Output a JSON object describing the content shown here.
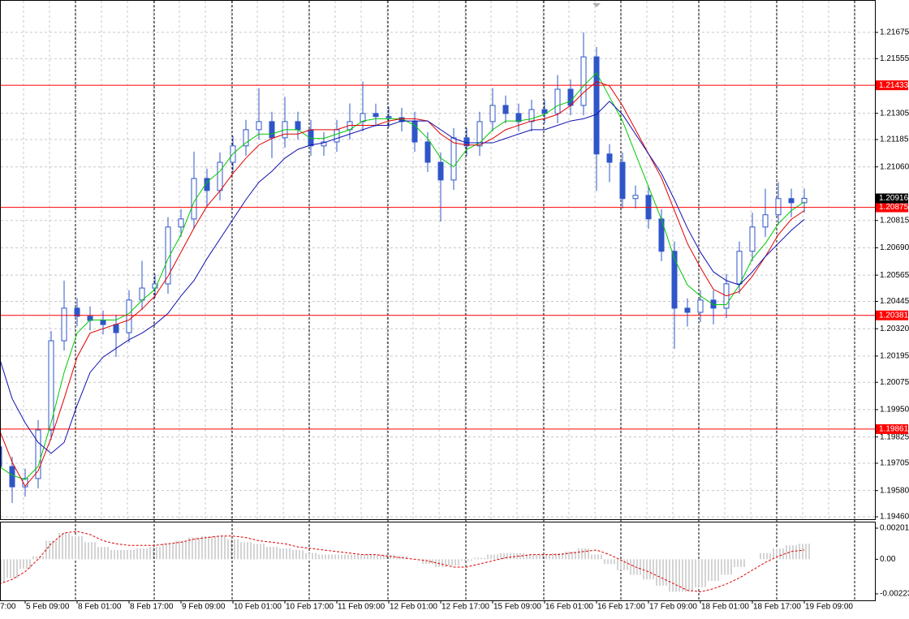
{
  "chart_data": [
    {
      "type": "candlestick",
      "categories": [
        "7:00",
        null,
        "5 Feb 09:00",
        null,
        null,
        null,
        "8 Feb 01:00",
        null,
        null,
        null,
        "8 Feb 17:00",
        null,
        null,
        null,
        "9 Feb 09:00",
        null,
        null,
        null,
        "10 Feb 01:00",
        null,
        null,
        null,
        "10 Feb 17:00",
        null,
        null,
        null,
        "11 Feb 09:00",
        null,
        null,
        null,
        "12 Feb 01:00",
        null,
        null,
        null,
        "12 Feb 17:00",
        null,
        null,
        null,
        "15 Feb 09:00",
        null,
        null,
        null,
        "16 Feb 01:00",
        null,
        null,
        null,
        "16 Feb 17:00",
        null,
        null,
        null,
        "17 Feb 09:00",
        null,
        null,
        null,
        "18 Feb 01:00",
        null,
        null,
        null,
        "18 Feb 17:00",
        null,
        null,
        null,
        "19 Feb 09:00"
      ],
      "open": [
        1.1978,
        1.1969,
        1.19597,
        1.19635,
        1.19857,
        1.20265,
        1.20414,
        1.20377,
        1.20358,
        1.20339,
        1.20302,
        1.20451,
        1.20506,
        1.20525,
        1.20785,
        1.20822,
        1.21007,
        1.20952,
        1.21081,
        1.21156,
        1.2123,
        1.21267,
        1.21193,
        1.21267,
        1.2123,
        1.21156,
        1.21174,
        1.2123,
        1.21267,
        1.21304,
        1.2129,
        1.21285,
        1.21267,
        1.21174,
        1.21081,
        1.21,
        1.21193,
        1.21156,
        1.21267,
        1.21341,
        1.21304,
        1.21267,
        1.21322,
        1.21304,
        1.21415,
        1.21341,
        1.21563,
        1.21119,
        1.21081,
        1.20915,
        1.2093,
        1.20822,
        1.20674,
        1.20414,
        1.20395,
        1.20451,
        1.20414,
        1.20525,
        1.20674,
        1.20785,
        1.20841,
        1.20915,
        1.20896
      ],
      "high": [
        1.19825,
        1.19735,
        1.1968,
        1.19902,
        1.2031,
        1.2054,
        1.20459,
        1.20422,
        1.20403,
        1.20384,
        1.20496,
        1.2063,
        1.2057,
        1.2083,
        1.20867,
        1.2113,
        1.21052,
        1.21126,
        1.21201,
        1.21275,
        1.2142,
        1.21312,
        1.2138,
        1.21312,
        1.21275,
        1.21219,
        1.21275,
        1.2135,
        1.2145,
        1.21349,
        1.21335,
        1.2133,
        1.21312,
        1.21219,
        1.21126,
        1.21238,
        1.21238,
        1.21312,
        1.2142,
        1.21386,
        1.21349,
        1.21367,
        1.21367,
        1.2148,
        1.2146,
        1.21675,
        1.21608,
        1.21164,
        1.21126,
        1.20975,
        1.20975,
        1.20867,
        1.20719,
        1.20459,
        1.20496,
        1.20496,
        1.2057,
        1.20719,
        1.2085,
        1.2096,
        1.2099,
        1.2096,
        1.20961
      ],
      "low": [
        1.19645,
        1.19523,
        1.19552,
        1.1959,
        1.19812,
        1.2022,
        1.20332,
        1.20313,
        1.20294,
        1.20191,
        1.20257,
        1.20406,
        1.20461,
        1.2048,
        1.2074,
        1.20777,
        1.2088,
        1.20907,
        1.21036,
        1.21111,
        1.21185,
        1.211,
        1.21148,
        1.21185,
        1.21111,
        1.21111,
        1.21129,
        1.21185,
        1.21222,
        1.21245,
        1.2124,
        1.21222,
        1.21129,
        1.21036,
        1.2081,
        1.20955,
        1.21111,
        1.21111,
        1.21222,
        1.21259,
        1.21222,
        1.21222,
        1.21259,
        1.21259,
        1.21296,
        1.21296,
        1.2095,
        1.2099,
        1.2087,
        1.2087,
        1.20777,
        1.20629,
        1.20228,
        1.2033,
        1.2035,
        1.2034,
        1.20369,
        1.2048,
        1.20629,
        1.2074,
        1.20796,
        1.2083,
        1.20851
      ],
      "close": [
        1.1969,
        1.19597,
        1.19635,
        1.19857,
        1.20265,
        1.20414,
        1.20377,
        1.20358,
        1.20339,
        1.20302,
        1.20451,
        1.20506,
        1.20525,
        1.20785,
        1.20822,
        1.21007,
        1.20952,
        1.21081,
        1.21156,
        1.2123,
        1.21267,
        1.21193,
        1.21267,
        1.2123,
        1.21156,
        1.21174,
        1.2123,
        1.21267,
        1.21304,
        1.2129,
        1.21285,
        1.21267,
        1.21174,
        1.21081,
        1.21,
        1.21193,
        1.21156,
        1.21267,
        1.21341,
        1.21304,
        1.21267,
        1.21322,
        1.21304,
        1.21415,
        1.21341,
        1.21563,
        1.21119,
        1.21081,
        1.20915,
        1.2093,
        1.20822,
        1.20674,
        1.20414,
        1.20395,
        1.20451,
        1.20414,
        1.20525,
        1.20674,
        1.20785,
        1.20841,
        1.20915,
        1.20896,
        1.20916
      ],
      "candle_color": "#2f56c8",
      "lines": [
        {
          "color": "#00c800",
          "values": [
            1.1969,
            1.1965,
            1.1963,
            1.1969,
            1.1989,
            1.2012,
            1.203,
            1.2036,
            1.2036,
            1.2036,
            1.2039,
            1.2045,
            1.205,
            1.2064,
            1.2075,
            1.209,
            1.2099,
            1.2104,
            1.2112,
            1.2117,
            1.2121,
            1.2121,
            1.2123,
            1.2123,
            1.2119,
            1.2119,
            1.2121,
            1.2123,
            1.2127,
            1.2128,
            1.2128,
            1.2128,
            1.2125,
            1.2119,
            1.211,
            1.2106,
            1.2114,
            1.2117,
            1.2123,
            1.2127,
            1.2127,
            1.2128,
            1.213,
            1.2134,
            1.2136,
            1.2143,
            1.2149,
            1.2138,
            1.2127,
            1.2112,
            1.2097,
            1.2082,
            1.2064,
            1.2052,
            1.2047,
            1.2043,
            1.2043,
            1.2052,
            1.2064,
            1.2071,
            1.208,
            1.2086,
            1.209
          ]
        },
        {
          "color": "#e00000",
          "values": [
            1.1986,
            1.1971,
            1.196,
            1.1967,
            1.1982,
            1.2,
            1.2019,
            1.203,
            1.2032,
            1.2034,
            1.2036,
            1.2041,
            1.2047,
            1.2056,
            1.2067,
            1.2078,
            1.2088,
            1.2095,
            1.2103,
            1.211,
            1.2116,
            1.2119,
            1.2121,
            1.2121,
            1.2123,
            1.2123,
            1.2123,
            1.2125,
            1.2125,
            1.2125,
            1.2127,
            1.2128,
            1.2128,
            1.2127,
            1.2121,
            1.2117,
            1.2116,
            1.2116,
            1.2119,
            1.2123,
            1.2125,
            1.2127,
            1.2128,
            1.213,
            1.2134,
            1.214,
            1.2145,
            1.2143,
            1.2134,
            1.2123,
            1.2112,
            1.2101,
            1.2086,
            1.2071,
            1.206,
            1.205,
            1.2047,
            1.2049,
            1.2056,
            1.2065,
            1.2075,
            1.2082,
            1.2086
          ]
        },
        {
          "color": "#1010b0",
          "values": [
            1.2019,
            1.2,
            1.1989,
            1.198,
            1.1975,
            1.198,
            1.1997,
            1.2012,
            1.2019,
            1.2023,
            1.2027,
            1.203,
            1.2034,
            1.2039,
            1.2047,
            1.2054,
            1.2064,
            1.2073,
            1.2082,
            1.2091,
            1.2099,
            1.2104,
            1.211,
            1.2114,
            1.2116,
            1.2117,
            1.2119,
            1.2121,
            1.2123,
            1.2125,
            1.2125,
            1.2127,
            1.2127,
            1.2127,
            1.2123,
            1.2119,
            1.2117,
            1.2117,
            1.2117,
            1.2119,
            1.2121,
            1.2123,
            1.2123,
            1.2125,
            1.2127,
            1.2128,
            1.213,
            1.2136,
            1.213,
            1.2121,
            1.2112,
            1.2103,
            1.2091,
            1.2078,
            1.2067,
            1.2058,
            1.2054,
            1.2052,
            1.2058,
            1.2065,
            1.2071,
            1.2077,
            1.2082
          ]
        }
      ],
      "levels": [
        1.21433,
        1.20875,
        1.20381,
        1.19861
      ],
      "level_color": "#ff0000",
      "last_price": 1.20916,
      "ylim": [
        1.19449,
        1.21823
      ],
      "yticks": [
        1.21675,
        1.21555,
        1.21305,
        1.21185,
        {
          "value": 1.2106,
          "label": "1.21060"
        },
        1.20815,
        {
          "value": 1.2069,
          "label": "1.20690"
        },
        1.20565,
        1.20445,
        {
          "value": 1.2032,
          "label": "1.20320"
        },
        1.20195,
        1.20075,
        {
          "value": 1.1995,
          "label": "1.19950"
        },
        1.19825,
        1.19705,
        {
          "value": 1.1958,
          "label": "1.19580"
        },
        {
          "value": 1.1946,
          "label": "1.19460"
        }
      ],
      "grid": true
    },
    {
      "type": "histogram",
      "values": [
        -0.0015,
        -0.0012,
        -0.0006,
        0.0002,
        0.0012,
        0.0017,
        0.0015,
        0.0011,
        0.0008,
        0.0006,
        0.0006,
        0.0007,
        0.0008,
        0.001,
        0.0012,
        0.0014,
        0.0015,
        0.0015,
        0.0013,
        0.0011,
        0.001,
        0.0008,
        0.0007,
        0.0006,
        0.0004,
        0.0003,
        0.0003,
        0.0003,
        0.0003,
        0.0003,
        0.0003,
        0.0002,
        0.0,
        -0.0003,
        -0.0005,
        -0.0004,
        -0.0001,
        0.0001,
        0.0003,
        0.0004,
        0.0004,
        0.0003,
        0.0003,
        0.0004,
        0.0005,
        0.0007,
        0.0003,
        -0.0003,
        -0.0007,
        -0.001,
        -0.0013,
        -0.0017,
        -0.0021,
        -0.0021,
        -0.0018,
        -0.0014,
        -0.001,
        -0.0005,
        0.0,
        0.0004,
        0.0007,
        0.0009,
        0.001
      ],
      "color": "#a8a8a8",
      "signal": [
        -0.0016,
        -0.0013,
        -0.0008,
        0.0,
        0.001,
        0.0017,
        0.0018,
        0.0016,
        0.0012,
        0.001,
        0.0009,
        0.0009,
        0.0009,
        0.001,
        0.0011,
        0.0013,
        0.0014,
        0.0015,
        0.0015,
        0.0014,
        0.0012,
        0.0011,
        0.001,
        0.0008,
        0.0007,
        0.0006,
        0.0005,
        0.0004,
        0.0003,
        0.0003,
        0.0002,
        0.0001,
        0.0,
        -0.0001,
        -0.0003,
        -0.0005,
        -0.0005,
        -0.0003,
        -0.0001,
        0.0001,
        0.0002,
        0.0003,
        0.0003,
        0.0003,
        0.0004,
        0.0005,
        0.0006,
        0.0003,
        -0.0001,
        -0.0005,
        -0.0008,
        -0.0012,
        -0.0016,
        -0.002,
        -0.0021,
        -0.0019,
        -0.0016,
        -0.0012,
        -0.0007,
        -0.0002,
        0.0002,
        0.0005,
        0.0006
      ],
      "signal_color": "#e00000",
      "ylim": [
        -0.00265,
        0.00243
      ],
      "yticks": [
        0.00201,
        {
          "value": 0,
          "label": "0.00"
        },
        -0.00223
      ]
    }
  ]
}
